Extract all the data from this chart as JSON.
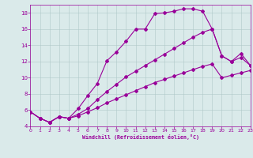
{
  "xlabel": "Windchill (Refroidissement éolien,°C)",
  "bg_color": "#daeaea",
  "grid_color": "#b0c8c8",
  "line_color": "#990099",
  "xlim": [
    0,
    23
  ],
  "ylim": [
    4,
    19
  ],
  "xticks": [
    0,
    1,
    2,
    3,
    4,
    5,
    6,
    7,
    8,
    9,
    10,
    11,
    12,
    13,
    14,
    15,
    16,
    17,
    18,
    19,
    20,
    21,
    22,
    23
  ],
  "yticks": [
    4,
    6,
    8,
    10,
    12,
    14,
    16,
    18
  ],
  "series1_x": [
    0,
    1,
    2,
    3,
    4,
    5,
    6,
    7,
    8,
    9,
    10,
    11,
    12,
    13,
    14,
    15,
    16,
    17,
    18,
    19,
    20,
    21,
    22,
    23
  ],
  "series1_y": [
    5.8,
    5.0,
    4.5,
    5.2,
    5.0,
    6.2,
    7.8,
    9.3,
    12.1,
    13.2,
    14.5,
    16.0,
    16.0,
    17.9,
    18.0,
    18.2,
    18.5,
    18.5,
    18.2,
    16.0,
    12.7,
    12.0,
    13.0,
    11.5
  ],
  "series2_x": [
    0,
    1,
    2,
    3,
    4,
    5,
    6,
    7,
    8,
    9,
    10,
    11,
    12,
    13,
    14,
    15,
    16,
    17,
    18,
    19,
    20,
    21,
    22,
    23
  ],
  "series2_y": [
    5.8,
    5.0,
    4.5,
    5.2,
    5.0,
    5.5,
    6.2,
    7.3,
    8.3,
    9.2,
    10.1,
    10.8,
    11.5,
    12.2,
    12.9,
    13.6,
    14.3,
    15.0,
    15.6,
    16.0,
    12.7,
    12.0,
    12.5,
    11.5
  ],
  "series3_x": [
    0,
    1,
    2,
    3,
    4,
    5,
    6,
    7,
    8,
    9,
    10,
    11,
    12,
    13,
    14,
    15,
    16,
    17,
    18,
    19,
    20,
    21,
    22,
    23
  ],
  "series3_y": [
    5.8,
    5.0,
    4.5,
    5.2,
    5.0,
    5.3,
    5.8,
    6.3,
    6.9,
    7.4,
    7.9,
    8.4,
    8.9,
    9.4,
    9.8,
    10.2,
    10.6,
    11.0,
    11.4,
    11.7,
    10.0,
    10.3,
    10.6,
    10.9
  ]
}
